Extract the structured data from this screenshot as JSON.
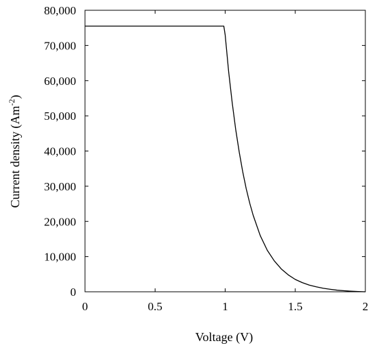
{
  "chart_data": {
    "type": "line",
    "title": "",
    "xlabel": "Voltage (V)",
    "ylabel": {
      "base": "Current density (Am",
      "sup": "-2",
      "close": ")"
    },
    "xlim": [
      0,
      2
    ],
    "ylim": [
      0,
      80000
    ],
    "x_ticks": [
      0,
      0.5,
      1,
      1.5,
      2
    ],
    "x_tick_labels": [
      "0",
      "0.5",
      "1",
      "1.5",
      "2"
    ],
    "y_ticks": [
      0,
      10000,
      20000,
      30000,
      40000,
      50000,
      60000,
      70000,
      80000
    ],
    "y_tick_labels": [
      "0",
      "10,000",
      "20,000",
      "30,000",
      "40,000",
      "50,000",
      "60,000",
      "70,000",
      "80,000"
    ],
    "grid": false,
    "legend": "none",
    "series": [
      {
        "color": "#000000",
        "x": [
          0,
          0.5,
          0.99,
          1.0,
          1.025,
          1.05,
          1.075,
          1.1,
          1.125,
          1.15,
          1.175,
          1.2,
          1.25,
          1.3,
          1.35,
          1.4,
          1.45,
          1.5,
          1.55,
          1.6,
          1.65,
          1.7,
          1.75,
          1.8,
          1.85,
          1.9,
          1.95,
          2.0
        ],
        "y": [
          75500,
          75500,
          75500,
          73000,
          62500,
          53800,
          46200,
          39700,
          34100,
          29300,
          25200,
          21700,
          16000,
          11800,
          8800,
          6500,
          4800,
          3500,
          2600,
          1900,
          1400,
          1000,
          700,
          450,
          300,
          150,
          50,
          0
        ]
      }
    ]
  }
}
